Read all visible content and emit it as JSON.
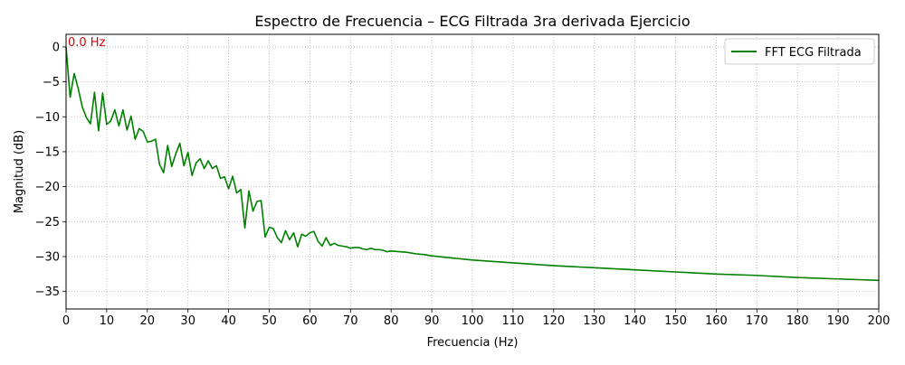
{
  "chart_data": {
    "type": "line",
    "title": "Espectro de Frecuencia – ECG Filtrada 3ra derivada Ejercicio",
    "xlabel": "Frecuencia (Hz)",
    "ylabel": "Magnitud (dB)",
    "xlim": [
      0,
      200
    ],
    "ylim": [
      -37.5,
      1.8
    ],
    "xticks": [
      0,
      10,
      20,
      30,
      40,
      50,
      60,
      70,
      80,
      90,
      100,
      110,
      120,
      130,
      140,
      150,
      160,
      170,
      180,
      190,
      200
    ],
    "yticks": [
      0,
      -5,
      -10,
      -15,
      -20,
      -25,
      -30,
      -35
    ],
    "ytick_labels": [
      "0",
      "−5",
      "−10",
      "−15",
      "−20",
      "−25",
      "−30",
      "−35"
    ],
    "grid": true,
    "grid_style": "dotted",
    "legend_position": "top-right",
    "annotation": {
      "text": "0.0 Hz",
      "x": 0,
      "y": 0,
      "color": "#dd0000"
    },
    "series": [
      {
        "name": "FFT ECG Filtrada",
        "color": "#008000",
        "points": [
          [
            0,
            0
          ],
          [
            1,
            -7.2
          ],
          [
            2,
            -3.8
          ],
          [
            3,
            -6
          ],
          [
            4,
            -8.6
          ],
          [
            5,
            -10.1
          ],
          [
            6,
            -11
          ],
          [
            7,
            -6.5
          ],
          [
            8,
            -12
          ],
          [
            9,
            -6.6
          ],
          [
            10,
            -11.1
          ],
          [
            11,
            -10.6
          ],
          [
            12,
            -9
          ],
          [
            13,
            -11.3
          ],
          [
            14,
            -9
          ],
          [
            15,
            -11.9
          ],
          [
            16,
            -9.9
          ],
          [
            17,
            -13.2
          ],
          [
            18,
            -11.7
          ],
          [
            19,
            -12.1
          ],
          [
            20,
            -13.6
          ],
          [
            21,
            -13.5
          ],
          [
            22,
            -13.2
          ],
          [
            23,
            -16.8
          ],
          [
            24,
            -18
          ],
          [
            25,
            -14.1
          ],
          [
            26,
            -17.1
          ],
          [
            27,
            -15.3
          ],
          [
            28,
            -13.8
          ],
          [
            29,
            -17
          ],
          [
            30,
            -15.1
          ],
          [
            31,
            -18.4
          ],
          [
            32,
            -16.6
          ],
          [
            33,
            -16
          ],
          [
            34,
            -17.4
          ],
          [
            35,
            -16.3
          ],
          [
            36,
            -17.4
          ],
          [
            37,
            -17
          ],
          [
            38,
            -18.8
          ],
          [
            39,
            -18.6
          ],
          [
            40,
            -20.3
          ],
          [
            41,
            -18.5
          ],
          [
            42,
            -20.9
          ],
          [
            43,
            -20.4
          ],
          [
            44,
            -25.9
          ],
          [
            45,
            -20.6
          ],
          [
            46,
            -23.5
          ],
          [
            47,
            -22.1
          ],
          [
            48,
            -22
          ],
          [
            49,
            -27.2
          ],
          [
            50,
            -25.8
          ],
          [
            51,
            -26
          ],
          [
            52,
            -27.3
          ],
          [
            53,
            -28
          ],
          [
            54,
            -26.3
          ],
          [
            55,
            -27.6
          ],
          [
            56,
            -26.6
          ],
          [
            57,
            -28.6
          ],
          [
            58,
            -26.8
          ],
          [
            59,
            -27.1
          ],
          [
            60,
            -26.6
          ],
          [
            61,
            -26.4
          ],
          [
            62,
            -27.8
          ],
          [
            63,
            -28.5
          ],
          [
            64,
            -27.3
          ],
          [
            65,
            -28.4
          ],
          [
            66,
            -28.1
          ],
          [
            67,
            -28.4
          ],
          [
            68,
            -28.5
          ],
          [
            69,
            -28.6
          ],
          [
            70,
            -28.8
          ],
          [
            71,
            -28.7
          ],
          [
            72,
            -28.7
          ],
          [
            73,
            -28.9
          ],
          [
            74,
            -29
          ],
          [
            75,
            -28.8
          ],
          [
            76,
            -29
          ],
          [
            77,
            -29
          ],
          [
            78,
            -29.1
          ],
          [
            79,
            -29.3
          ],
          [
            80,
            -29.2
          ],
          [
            82,
            -29.3
          ],
          [
            84,
            -29.4
          ],
          [
            86,
            -29.6
          ],
          [
            88,
            -29.7
          ],
          [
            90,
            -29.9
          ],
          [
            95,
            -30.2
          ],
          [
            100,
            -30.5
          ],
          [
            110,
            -30.9
          ],
          [
            120,
            -31.3
          ],
          [
            130,
            -31.6
          ],
          [
            140,
            -31.9
          ],
          [
            150,
            -32.2
          ],
          [
            160,
            -32.5
          ],
          [
            170,
            -32.7
          ],
          [
            180,
            -33
          ],
          [
            190,
            -33.2
          ],
          [
            200,
            -33.4
          ]
        ]
      }
    ]
  }
}
